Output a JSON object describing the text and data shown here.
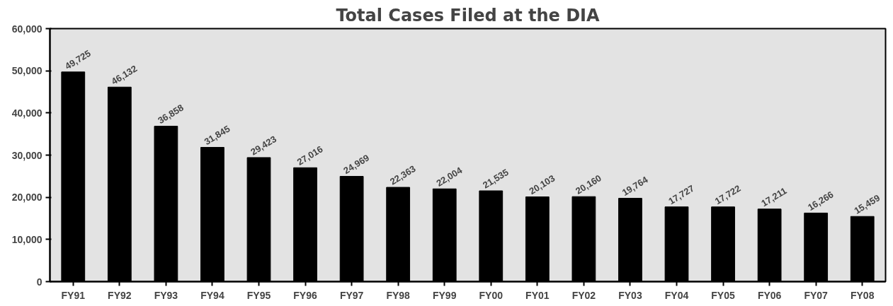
{
  "chart_data": {
    "type": "bar",
    "title": "Total Cases Filed at the DIA",
    "categories": [
      "FY91",
      "FY92",
      "FY93",
      "FY94",
      "FY95",
      "FY96",
      "FY97",
      "FY98",
      "FY99",
      "FY00",
      "FY01",
      "FY02",
      "FY03",
      "FY04",
      "FY05",
      "FY06",
      "FY07",
      "FY08"
    ],
    "values": [
      49725,
      46132,
      36858,
      31845,
      29423,
      27016,
      24969,
      22363,
      22004,
      21535,
      20103,
      20160,
      19764,
      17727,
      17722,
      17211,
      16266,
      15459
    ],
    "color": "#000000",
    "ylim": [
      0,
      60000
    ],
    "yticks": [
      {
        "value": 0,
        "label": "0"
      },
      {
        "value": 10000,
        "label": "10,000"
      },
      {
        "value": 20000,
        "label": "20,000"
      },
      {
        "value": 30000,
        "label": "30,000"
      },
      {
        "value": 40000,
        "label": "40,000"
      },
      {
        "value": 50000,
        "label": "50,000"
      },
      {
        "value": 60000,
        "label": "60,000"
      }
    ],
    "grid": false,
    "value_labels": [
      "49,725",
      "46,132",
      "36,858",
      "31,845",
      "29,423",
      "27,016",
      "24,969",
      "22,363",
      "22,004",
      "21,535",
      "20,103",
      "20,160",
      "19,764",
      "17,727",
      "17,722",
      "17,211",
      "16,266",
      "15,459"
    ]
  }
}
